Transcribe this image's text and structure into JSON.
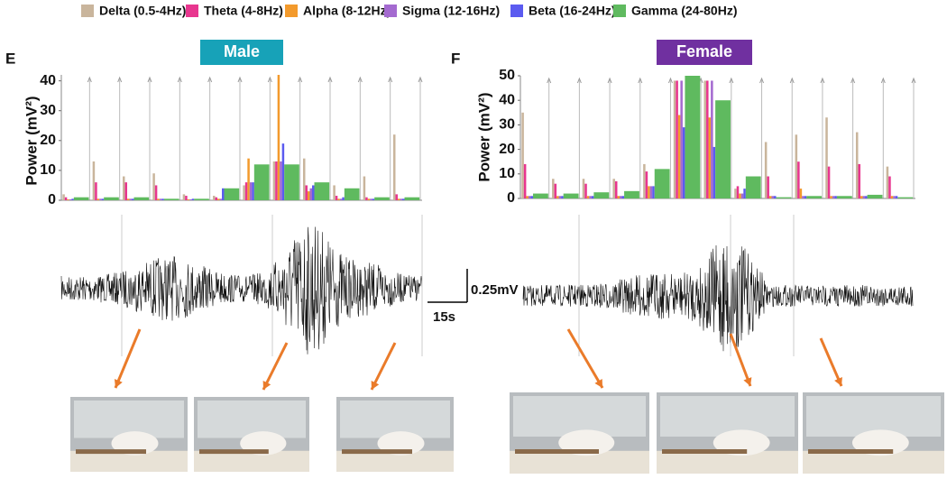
{
  "chart_data": [
    {
      "type": "bar",
      "panel": "E",
      "title": "Male",
      "ylabel": "Power (mV²)",
      "categories": [
        null,
        null,
        null,
        null,
        null,
        null,
        null,
        null,
        null,
        null,
        null,
        null
      ],
      "ylim": [
        0,
        42
      ],
      "yticks": [
        0,
        10,
        20,
        30,
        40
      ],
      "grid": true,
      "series": [
        {
          "name": "Delta (0.5-4Hz)",
          "color": "#c9b59c",
          "values": [
            2,
            13,
            8,
            9,
            2,
            1.5,
            5,
            13,
            14,
            5,
            8,
            22
          ]
        },
        {
          "name": "Theta (4-8Hz)",
          "color": "#e8368f",
          "values": [
            1,
            6,
            6,
            5,
            1.5,
            1,
            6,
            13,
            5,
            1.5,
            1,
            2
          ]
        },
        {
          "name": "Alpha (8-12Hz)",
          "color": "#f39a2c",
          "values": [
            0.3,
            0.5,
            0.5,
            0.5,
            0.3,
            0.5,
            14,
            42,
            3,
            0.5,
            0.5,
            0.5
          ]
        },
        {
          "name": "Sigma (12-16Hz)",
          "color": "#a46ad0",
          "values": [
            0.3,
            0.5,
            0.5,
            0.5,
            0.3,
            0.5,
            6,
            13,
            4,
            0.5,
            0.5,
            0.5
          ]
        },
        {
          "name": "Beta (16-24Hz)",
          "color": "#5b5bf0",
          "values": [
            0.5,
            0.5,
            0.5,
            0.5,
            0.5,
            4,
            6,
            19,
            5,
            1,
            0.5,
            0.5
          ]
        },
        {
          "name": "Gamma (24-80Hz)",
          "color": "#5fba5f",
          "values": [
            1,
            1,
            1,
            0.5,
            0.5,
            4,
            12,
            12,
            6,
            4,
            1,
            1
          ]
        }
      ]
    },
    {
      "type": "bar",
      "panel": "F",
      "title": "Female",
      "ylabel": "Power (mV²)",
      "categories": [
        null,
        null,
        null,
        null,
        null,
        null,
        null,
        null,
        null,
        null,
        null,
        null,
        null
      ],
      "ylim": [
        0,
        50
      ],
      "yticks": [
        0,
        10,
        20,
        30,
        40,
        50
      ],
      "grid": true,
      "series": [
        {
          "name": "Delta (0.5-4Hz)",
          "color": "#c9b59c",
          "values": [
            35,
            8,
            8,
            8,
            14,
            48,
            48,
            4,
            23,
            26,
            33,
            27,
            13
          ]
        },
        {
          "name": "Theta (4-8Hz)",
          "color": "#e8368f",
          "values": [
            14,
            6,
            6,
            7,
            11,
            48,
            48,
            5,
            9,
            15,
            13,
            14,
            9
          ]
        },
        {
          "name": "Alpha (8-12Hz)",
          "color": "#f39a2c",
          "values": [
            1,
            1,
            1,
            1,
            5,
            34,
            33,
            2,
            1,
            4,
            1,
            1,
            1
          ]
        },
        {
          "name": "Sigma (12-16Hz)",
          "color": "#a46ad0",
          "values": [
            1,
            1,
            1,
            1,
            5,
            48,
            48,
            2,
            1,
            1,
            1,
            1,
            1
          ]
        },
        {
          "name": "Beta (16-24Hz)",
          "color": "#5b5bf0",
          "values": [
            1,
            1,
            1,
            1,
            5,
            29,
            21,
            4,
            1,
            1,
            1,
            1,
            1
          ]
        },
        {
          "name": "Gamma (24-80Hz)",
          "color": "#5fba5f",
          "values": [
            2,
            2,
            2.5,
            3,
            12,
            50,
            40,
            9,
            0.5,
            1,
            1,
            1.5,
            0.5
          ]
        }
      ]
    }
  ],
  "scale_bar": {
    "amplitude": "0.25mV",
    "time": "15s"
  }
}
